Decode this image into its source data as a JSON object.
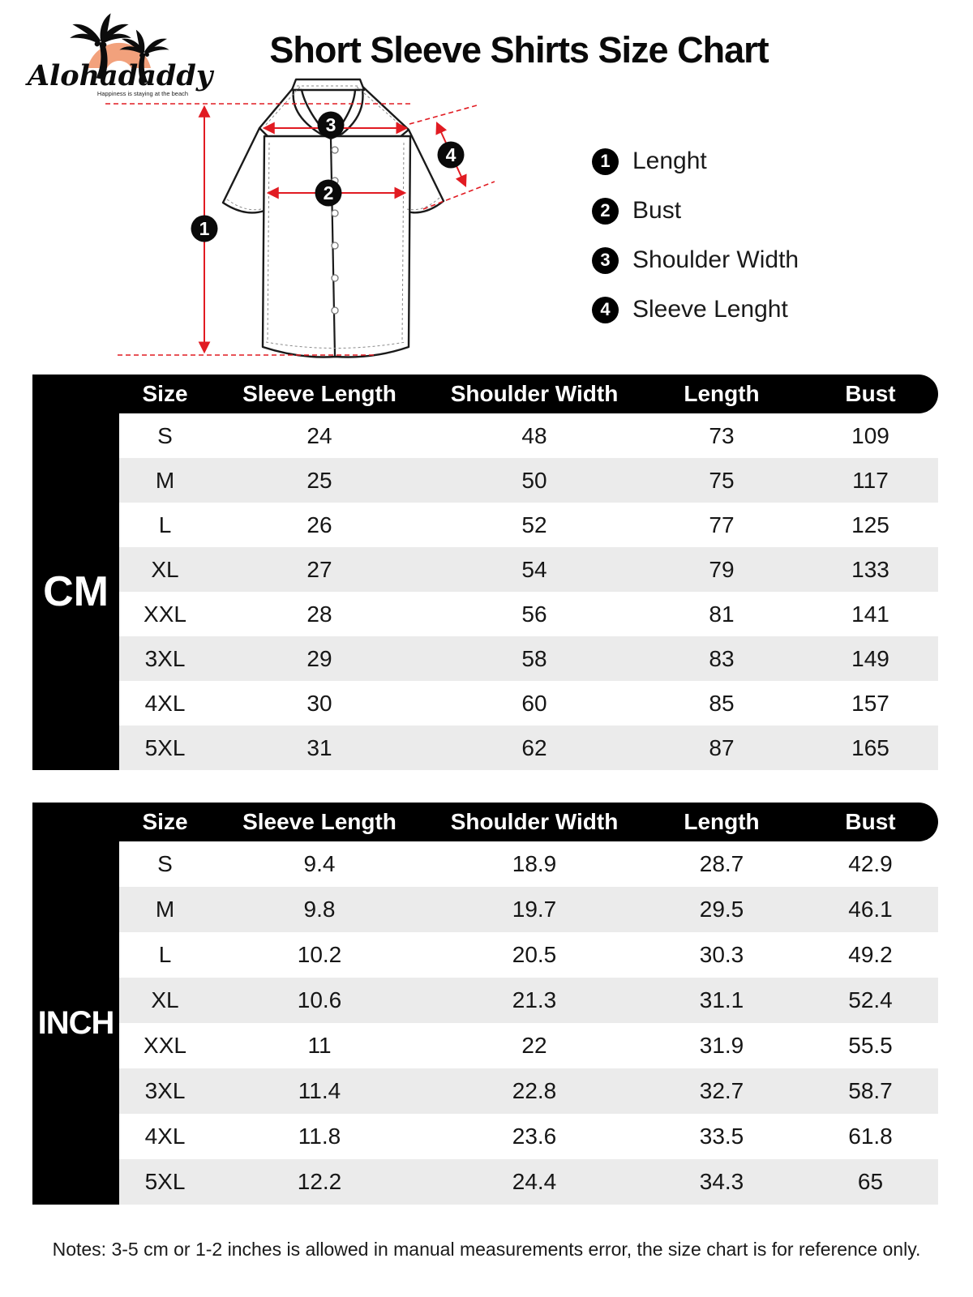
{
  "logo": {
    "brand": "Alohadaddy",
    "tagline": "Happiness is staying at the beach"
  },
  "title": "Short Sleeve Shirts Size Chart",
  "diagram": {
    "markers": [
      "1",
      "2",
      "3",
      "4"
    ]
  },
  "legend": {
    "items": [
      {
        "num": "1",
        "label": "Lenght"
      },
      {
        "num": "2",
        "label": "Bust"
      },
      {
        "num": "3",
        "label": "Shoulder Width"
      },
      {
        "num": "4",
        "label": "Sleeve Lenght"
      }
    ]
  },
  "chart_data": [
    {
      "type": "table",
      "title": "CM",
      "columns": [
        "Size",
        "Sleeve Length",
        "Shoulder Width",
        "Length",
        "Bust"
      ],
      "rows": [
        [
          "S",
          "24",
          "48",
          "73",
          "109"
        ],
        [
          "M",
          "25",
          "50",
          "75",
          "117"
        ],
        [
          "L",
          "26",
          "52",
          "77",
          "125"
        ],
        [
          "XL",
          "27",
          "54",
          "79",
          "133"
        ],
        [
          "XXL",
          "28",
          "56",
          "81",
          "141"
        ],
        [
          "3XL",
          "29",
          "58",
          "83",
          "149"
        ],
        [
          "4XL",
          "30",
          "60",
          "85",
          "157"
        ],
        [
          "5XL",
          "31",
          "62",
          "87",
          "165"
        ]
      ]
    },
    {
      "type": "table",
      "title": "INCH",
      "columns": [
        "Size",
        "Sleeve Length",
        "Shoulder Width",
        "Length",
        "Bust"
      ],
      "rows": [
        [
          "S",
          "9.4",
          "18.9",
          "28.7",
          "42.9"
        ],
        [
          "M",
          "9.8",
          "19.7",
          "29.5",
          "46.1"
        ],
        [
          "L",
          "10.2",
          "20.5",
          "30.3",
          "49.2"
        ],
        [
          "XL",
          "10.6",
          "21.3",
          "31.1",
          "52.4"
        ],
        [
          "XXL",
          "11",
          "22",
          "31.9",
          "55.5"
        ],
        [
          "3XL",
          "11.4",
          "22.8",
          "32.7",
          "58.7"
        ],
        [
          "4XL",
          "11.8",
          "23.6",
          "33.5",
          "61.8"
        ],
        [
          "5XL",
          "12.2",
          "24.4",
          "34.3",
          "65"
        ]
      ]
    }
  ],
  "notes": "Notes: 3-5 cm or 1-2 inches is allowed in manual measurements error, the size chart is for reference only.",
  "colors": {
    "accent_red": "#e11b22",
    "row_alt": "#ebebeb",
    "logo_arch": "#f2a17c",
    "table_black": "#000000"
  }
}
